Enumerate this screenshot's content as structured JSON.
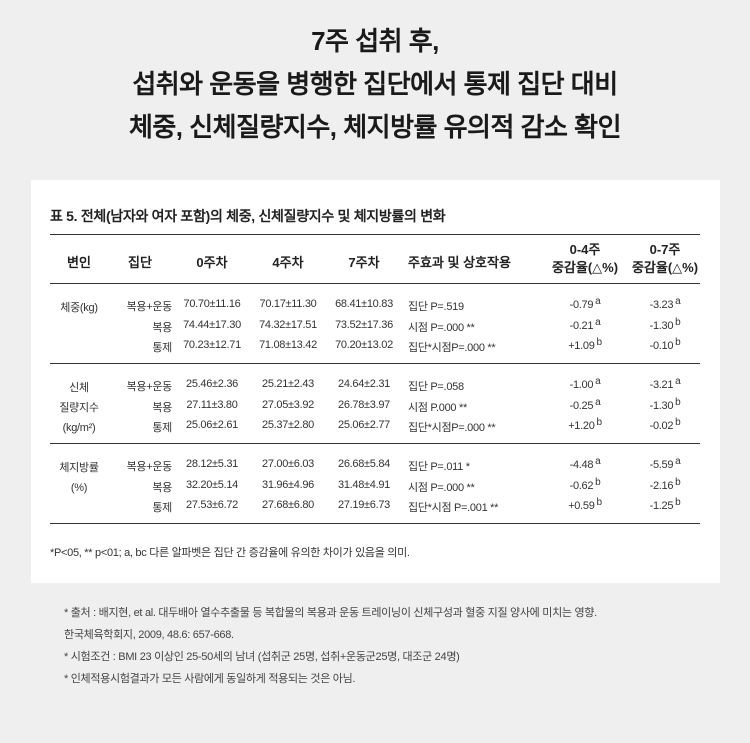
{
  "headline": [
    "7주 섭취 후,",
    "섭취와 운동을 병행한 집단에서 통제 집단 대비",
    "체중, 신체질량지수, 체지방률 유의적 감소 확인"
  ],
  "table": {
    "title": "표 5. 전체(남자와 여자 포함)의 체중, 신체질량지수 및 체지방률의 변화",
    "headers": [
      "변인",
      "집단",
      "0주차",
      "4주차",
      "7주차",
      "주효과 및 상호작용",
      "0-4주\n중감율(△%)",
      "0-7주\n중감율(△%)"
    ],
    "groups": [
      {
        "variable": "체중(kg)",
        "rows": [
          [
            "복용+운동",
            "70.70±11.16",
            "70.17±11.30",
            "68.41±10.83",
            "집단 P=.519",
            "-0.79",
            "a",
            "-3.23",
            "a"
          ],
          [
            "복용",
            "74.44±17.30",
            "74.32±17.51",
            "73.52±17.36",
            "시점 P=.000 **",
            "-0.21",
            "a",
            "-1.30",
            "b"
          ],
          [
            "통제",
            "70.23±12.71",
            "71.08±13.42",
            "70.20±13.02",
            "집단*시점P=.000 **",
            "+1.09",
            "b",
            "-0.10",
            "b"
          ]
        ]
      },
      {
        "variable": "신체\n질량지수\n(kg/m²)",
        "rows": [
          [
            "복용+운동",
            "25.46±2.36",
            "25.21±2.43",
            "24.64±2.31",
            "집단 P=.058",
            "-1.00",
            "a",
            "-3.21",
            "a"
          ],
          [
            "복용",
            "27.11±3.80",
            "27.05±3.92",
            "26.78±3.97",
            "시점 P.000 **",
            "-0.25",
            "a",
            "-1.30",
            "b"
          ],
          [
            "통제",
            "25.06±2.61",
            "25.37±2.80",
            "25.06±2.77",
            "집단*시점P=.000 **",
            "+1.20",
            "b",
            "-0.02",
            "b"
          ]
        ]
      },
      {
        "variable": "체지방률\n(%)",
        "rows": [
          [
            "복용+운동",
            "28.12±5.31",
            "27.00±6.03",
            "26.68±5.84",
            "집단 P=.011 *",
            "-4.48",
            "a",
            "-5.59",
            "a"
          ],
          [
            "복용",
            "32.20±5.14",
            "31.96±4.96",
            "31.48±4.91",
            "시점 P=.000 **",
            "-0.62",
            "b",
            "-2.16",
            "b"
          ],
          [
            "통제",
            "27.53±6.72",
            "27.68±6.80",
            "27.19±6.73",
            "집단*시점 P=.001 **",
            "+0.59",
            "b",
            "-1.25",
            "b"
          ]
        ]
      }
    ],
    "note": "*P<05, ** p<01; a, bc 다른 알파벳은 집단 간 증감율에 유의한 차이가 있음을 의미."
  },
  "references": [
    "* 출처 : 배지현, et al. 대두배아 열수추출물 등 복합물의 복용과 운동 트레이닝이 신체구성과 혈중 지질 양사에 미치는 영향.",
    "한국체육학회지, 2009, 48.6: 657-668.",
    "* 시험조건 : BMI 23 이상인 25-50세의 남녀 (섭취군 25명, 섭취+운동군25명, 대조군 24명)",
    "* 인체적용시험결과가 모든 사람에게 동일하게 적용되는 것은 아님."
  ]
}
